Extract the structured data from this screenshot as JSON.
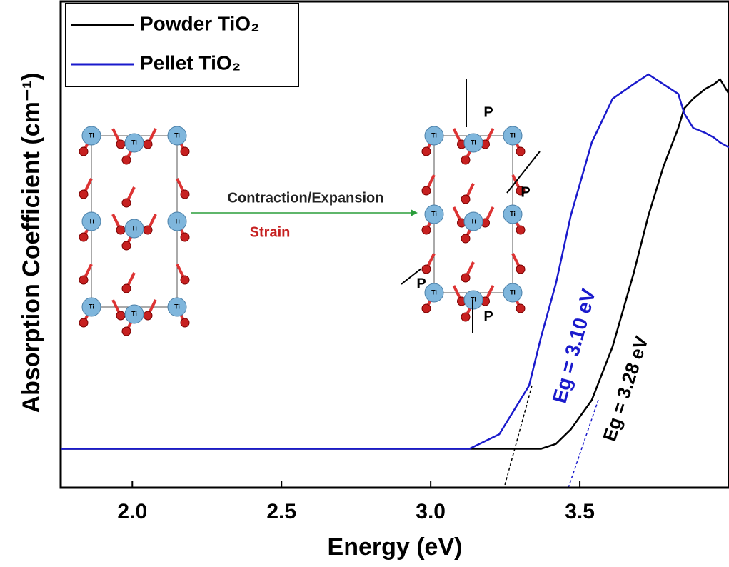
{
  "chart_data": {
    "type": "line",
    "x_label": "Energy (eV)",
    "y_label": "Absorption Coefficient (cm⁻¹)",
    "x": [
      1.76,
      2.0,
      2.5,
      3.0,
      3.13,
      3.23,
      3.33,
      3.37,
      3.42,
      3.47,
      3.54,
      3.61,
      3.68,
      3.73,
      3.78,
      3.83,
      3.85,
      3.88,
      3.92,
      3.95,
      3.97,
      4.0
    ],
    "series": [
      {
        "name": "Powder TiO₂",
        "color": "#000000",
        "values": [
          0.08,
          0.08,
          0.08,
          0.08,
          0.08,
          0.08,
          0.08,
          0.08,
          0.09,
          0.12,
          0.18,
          0.29,
          0.44,
          0.56,
          0.66,
          0.74,
          0.78,
          0.8,
          0.82,
          0.83,
          0.84,
          0.81
        ]
      },
      {
        "name": "Pellet TiO₂",
        "color": "#1a1acc",
        "values": [
          0.08,
          0.08,
          0.08,
          0.08,
          0.08,
          0.11,
          0.21,
          0.31,
          0.42,
          0.56,
          0.71,
          0.8,
          0.83,
          0.85,
          0.83,
          0.81,
          0.77,
          0.74,
          0.73,
          0.72,
          0.71,
          0.7
        ]
      }
    ],
    "xlim": [
      1.76,
      4.0
    ],
    "xticks": [
      {
        "value": 2,
        "label": "2.0"
      },
      2.5,
      {
        "value": 3,
        "label": "3.0"
      },
      3.5
    ],
    "ylim": [
      0,
      1
    ],
    "legend": "top-left",
    "annotations": {
      "eg_pellet": "Eg = 3.10 eV",
      "eg_powder": "Eg = 3.28 eV",
      "process": "Contraction/Expansion",
      "strain": "Strain",
      "pressure": "P",
      "atom": "Ti"
    }
  }
}
